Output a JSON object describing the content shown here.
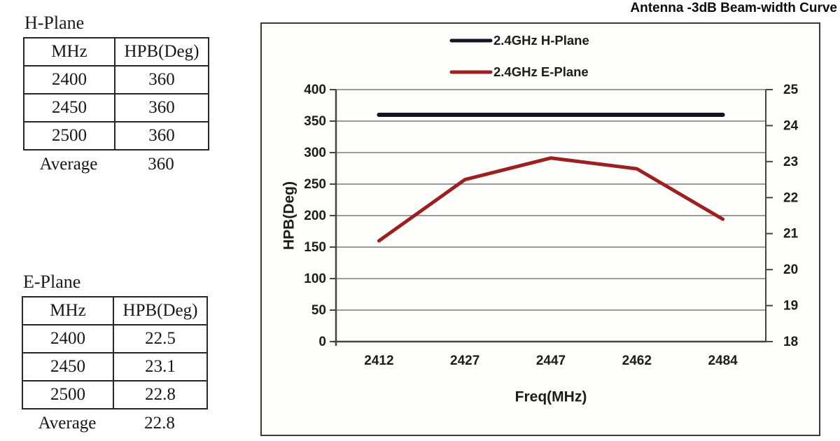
{
  "page": {
    "title": "Antenna -3dB Beam-width Curve"
  },
  "tables": [
    {
      "title": "H-Plane",
      "headers": [
        "MHz",
        "HPB(Deg)"
      ],
      "rows": [
        [
          "2400",
          "360"
        ],
        [
          "2450",
          "360"
        ],
        [
          "2500",
          "360"
        ]
      ],
      "footer": {
        "label": "Average",
        "value": "360"
      }
    },
    {
      "title": "E-Plane",
      "headers": [
        "MHz",
        "HPB(Deg)"
      ],
      "rows": [
        [
          "2400",
          "22.5"
        ],
        [
          "2450",
          "23.1"
        ],
        [
          "2500",
          "22.8"
        ]
      ],
      "footer": {
        "label": "Average",
        "value": "22.8"
      }
    }
  ],
  "chart_data": {
    "type": "line",
    "title": "Antenna -3dB Beam-width Curve",
    "categories": [
      "2412",
      "2427",
      "2447",
      "2462",
      "2484"
    ],
    "xlabel": "Freq(MHz)",
    "left_axis": {
      "label": "HPB(Deg)",
      "min": 0,
      "max": 400,
      "tick_step": 50
    },
    "right_axis": {
      "min": 18,
      "max": 25,
      "tick_step": 1
    },
    "grid": "horizontal",
    "legend_position": "top-center",
    "series": [
      {
        "name": "2.4GHz H-Plane",
        "axis": "left",
        "color": "#15151f",
        "width": 6,
        "values": [
          360,
          360,
          360,
          360,
          360
        ]
      },
      {
        "name": "2.4GHz E-Plane",
        "axis": "right",
        "color": "#9b2121",
        "width": 5,
        "values": [
          20.8,
          22.5,
          23.1,
          22.8,
          21.4
        ]
      }
    ],
    "colors": {
      "grid": "#7d7d7d",
      "axis": "#454545",
      "text": "#1c1c1c"
    }
  }
}
